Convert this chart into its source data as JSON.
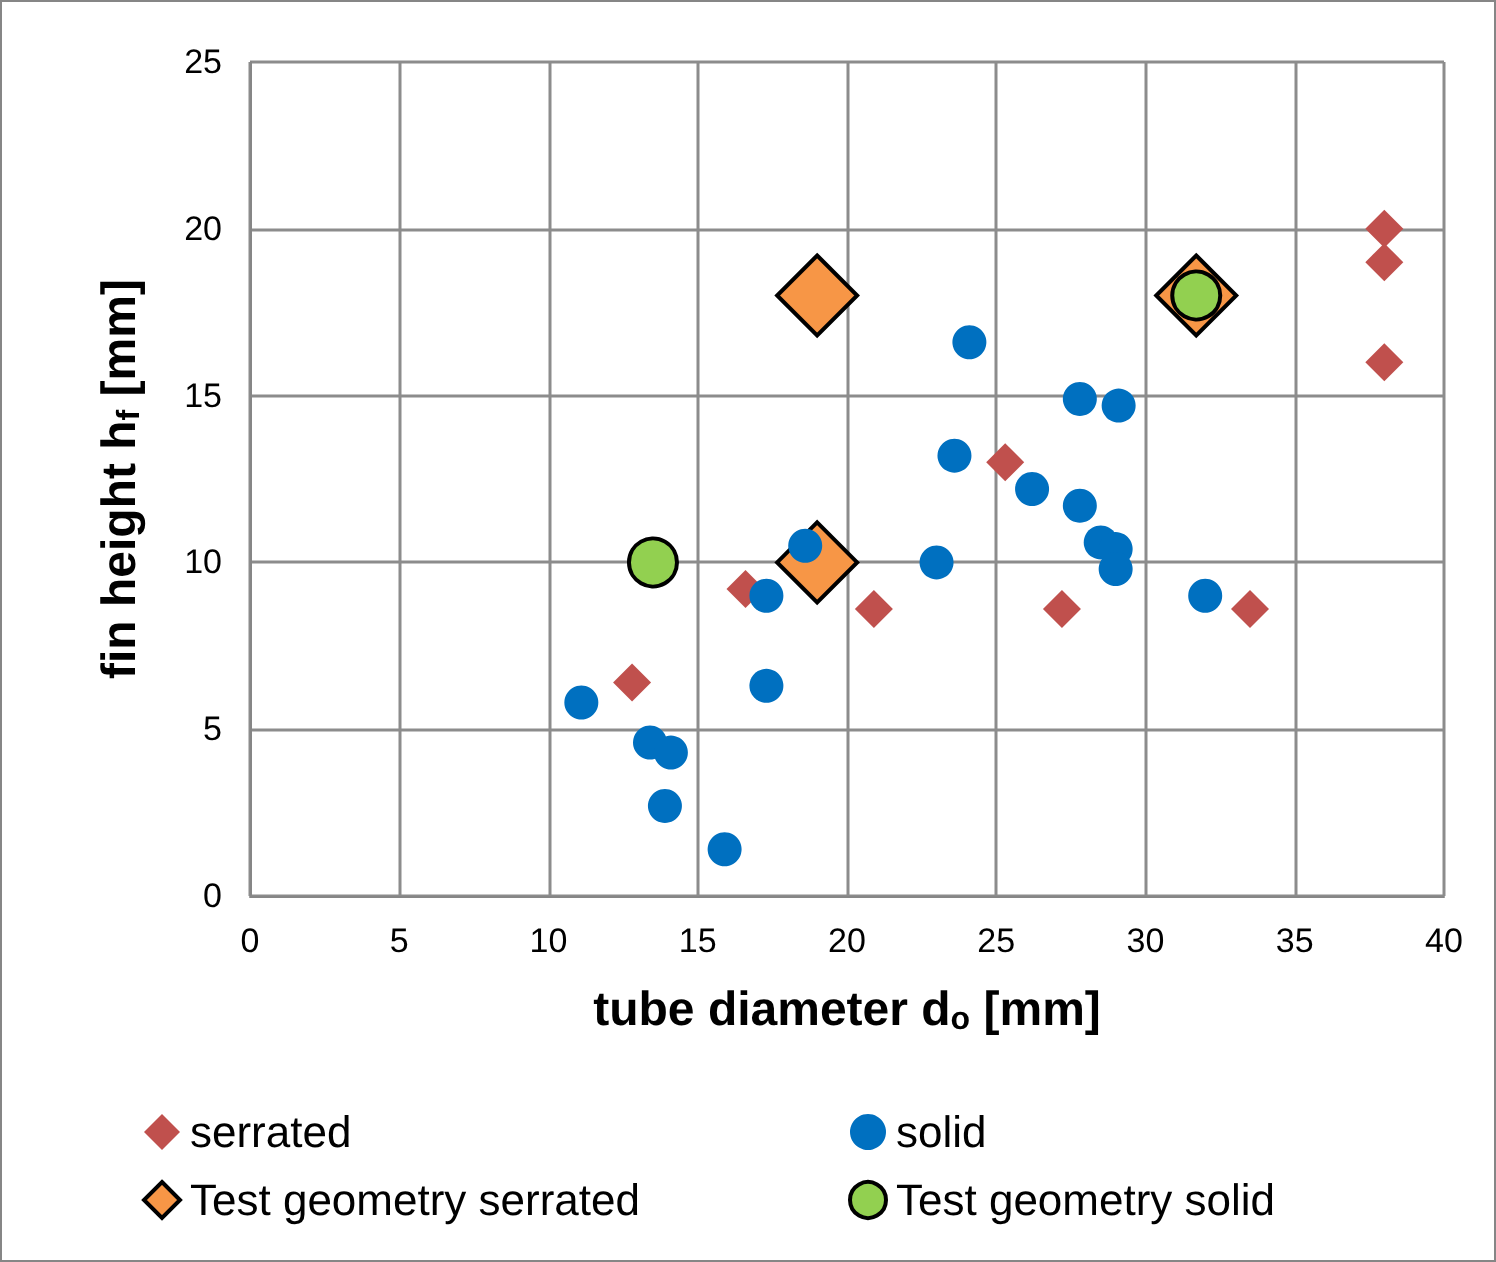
{
  "chart_data": {
    "type": "scatter",
    "xlabel": "tube diameter d$_{o}$ [mm]",
    "ylabel": "fin height h$_{f}$ [mm]",
    "xlim": [
      0,
      40
    ],
    "xticks": [
      0,
      5,
      10,
      15,
      20,
      25,
      30,
      35,
      40
    ],
    "ylim": [
      0,
      25
    ],
    "yticks": [
      0,
      5,
      10,
      15,
      20,
      25
    ],
    "grid": true,
    "legend": "bottom",
    "series": [
      {
        "name": "serrated",
        "color": "#c0504d",
        "marker": "diamond",
        "x": [
          16.6,
          20.9,
          12.8,
          38,
          38,
          38,
          25.3,
          27.2,
          33.5
        ],
        "values": [
          9.2,
          8.6,
          6.4,
          20,
          19,
          16,
          13,
          8.6,
          8.6
        ]
      },
      {
        "name": "solid",
        "color": "#0070c0",
        "marker": "circle",
        "x": [
          18.6,
          17.3,
          11.1,
          17.3,
          13.4,
          14.1,
          13.9,
          15.9,
          24.1,
          27.8,
          29.1,
          23.6,
          26.2,
          27.8,
          28.5,
          29,
          29,
          23,
          32
        ],
        "values": [
          10.5,
          9,
          5.8,
          6.3,
          4.6,
          4.3,
          2.7,
          1.4,
          16.6,
          14.9,
          14.7,
          13.2,
          12.2,
          11.7,
          10.6,
          10.4,
          9.8,
          10,
          9
        ]
      },
      {
        "name": "Test geometry serrated",
        "color": "#f79646",
        "marker": "diamond",
        "x": [
          19,
          19,
          31.7
        ],
        "values": [
          18,
          10,
          18
        ]
      },
      {
        "name": "Test geometry solid",
        "color": "#92d050",
        "marker": "circle",
        "x": [
          13.5,
          31.7
        ],
        "values": [
          10,
          18
        ]
      }
    ]
  }
}
